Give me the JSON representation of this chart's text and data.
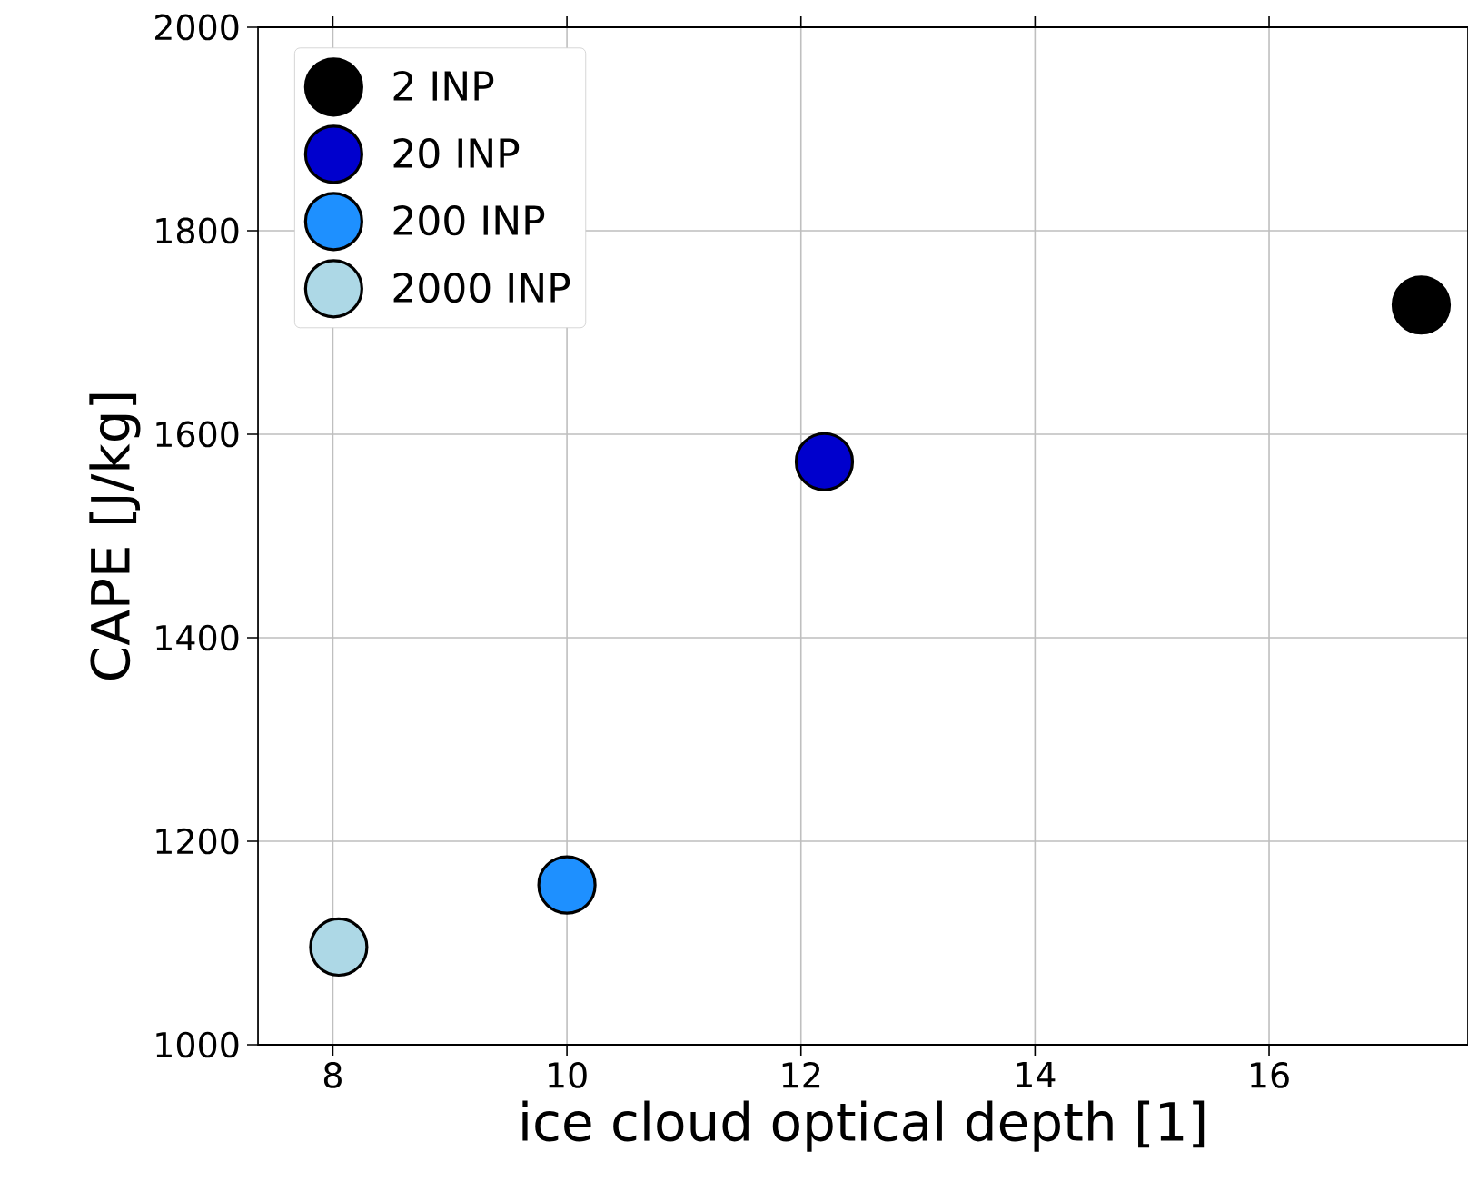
{
  "chart_data": {
    "type": "scatter",
    "xlabel": "ice cloud optical depth [1]",
    "ylabel": "CAPE [J/kg]",
    "series": [
      {
        "name": "2 INP",
        "color": "#000000",
        "x": [
          17.3
        ],
        "values": [
          1727
        ]
      },
      {
        "name": "20 INP",
        "color": "#0000cd",
        "x": [
          12.2
        ],
        "values": [
          1573
        ]
      },
      {
        "name": "200 INP",
        "color": "#1e90ff",
        "x": [
          10.0
        ],
        "values": [
          1157
        ]
      },
      {
        "name": "2000 INP",
        "color": "#add8e6",
        "x": [
          8.05
        ],
        "values": [
          1096
        ]
      }
    ],
    "xlim": [
      7.36,
      17.7
    ],
    "ylim": [
      1000,
      2000
    ],
    "xticks": [
      8,
      10,
      12,
      14,
      16
    ],
    "yticks": [
      1000,
      1200,
      1400,
      1600,
      1800,
      2000
    ],
    "grid": true,
    "legend": "top left"
  }
}
